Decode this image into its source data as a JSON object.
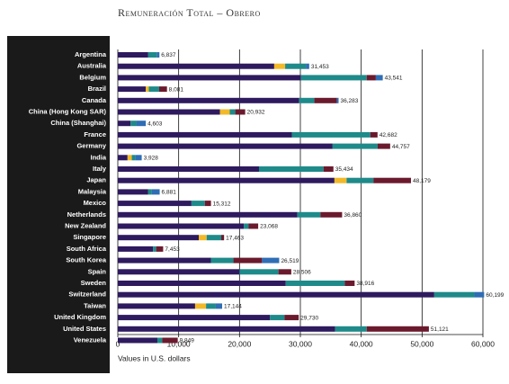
{
  "chart_data": {
    "type": "stacked-barh",
    "title": "Remuneración Total – Obrero",
    "xlabel": "Values in U.S. dollars",
    "categories": [
      "Argentina",
      "Australia",
      "Belgium",
      "Brazil",
      "Canada",
      "China (Hong Kong SAR)",
      "China (Shanghai)",
      "France",
      "Germany",
      "India",
      "Italy",
      "Japan",
      "Malaysia",
      "Mexico",
      "Netherlands",
      "New Zealand",
      "Singapore",
      "South Africa",
      "South Korea",
      "Spain",
      "Sweden",
      "Switzerland",
      "Taiwan",
      "United Kingdom",
      "United States",
      "Venezuela"
    ],
    "series": [
      {
        "color": "#2e1a5e",
        "values": [
          5000,
          25700,
          30100,
          4600,
          29800,
          16800,
          2100,
          28600,
          35300,
          1600,
          23200,
          35600,
          5000,
          12100,
          29500,
          20700,
          13300,
          5800,
          15300,
          20000,
          27600,
          52000,
          12700,
          25000,
          35700,
          6500
        ]
      },
      {
        "color": "#f2b928",
        "values": [
          0,
          1800,
          0,
          500,
          0,
          1600,
          0,
          0,
          0,
          700,
          0,
          2000,
          0,
          0,
          0,
          0,
          1300,
          0,
          0,
          0,
          0,
          0,
          1800,
          0,
          0,
          0
        ]
      },
      {
        "color": "#1f8a8a",
        "values": [
          1400,
          3400,
          10800,
          1700,
          2500,
          900,
          1000,
          12900,
          7400,
          600,
          10600,
          4400,
          600,
          2200,
          3800,
          800,
          2400,
          500,
          3700,
          6400,
          9700,
          6600,
          1600,
          2400,
          5200,
          800
        ]
      },
      {
        "color": "#6b1a2e",
        "values": [
          0,
          0,
          1500,
          1281,
          3700,
          1632,
          0,
          1182,
          2057,
          0,
          1634,
          6179,
          0,
          1012,
          3560,
          1568,
          463,
          1153,
          4700,
          2106,
          1616,
          0,
          0,
          2330,
          10221,
          2549
        ]
      },
      {
        "color": "#2f6db5",
        "values": [
          437,
          553,
          1141,
          0,
          283,
          0,
          1503,
          0,
          0,
          1028,
          0,
          0,
          1281,
          0,
          0,
          0,
          0,
          0,
          2819,
          0,
          0,
          1599,
          1044,
          0,
          0,
          0
        ]
      }
    ],
    "totals": {
      "values": [
        6837,
        31453,
        43541,
        8081,
        36283,
        20932,
        4603,
        42682,
        44757,
        3928,
        35434,
        48179,
        6881,
        15312,
        36860,
        23068,
        17463,
        7453,
        26519,
        28506,
        38916,
        60199,
        17144,
        29730,
        51121,
        9849
      ],
      "value_labels": [
        "6,837",
        "31,453",
        "43,541",
        "8,081",
        "36,283",
        "20,932",
        "4,603",
        "42,682",
        "44,757",
        "3,928",
        "35,434",
        "48,179",
        "6,881",
        "15,312",
        "36,860",
        "23,068",
        "17,463",
        "7,453",
        "26,519",
        "28,506",
        "38,916",
        "60,199",
        "17,144",
        "29,730",
        "51,121",
        "9,849"
      ]
    },
    "xlim": [
      0,
      60000
    ],
    "xticks": [
      0,
      {
        "value": 10000,
        "label": "10,000"
      },
      {
        "value": 20000,
        "label": "20,000"
      },
      {
        "value": 30000,
        "label": "30,000"
      },
      {
        "value": 40000,
        "label": "40,000"
      },
      {
        "value": 50000,
        "label": "50,000"
      },
      {
        "value": 60000,
        "label": "60,000"
      }
    ],
    "grid": true
  }
}
